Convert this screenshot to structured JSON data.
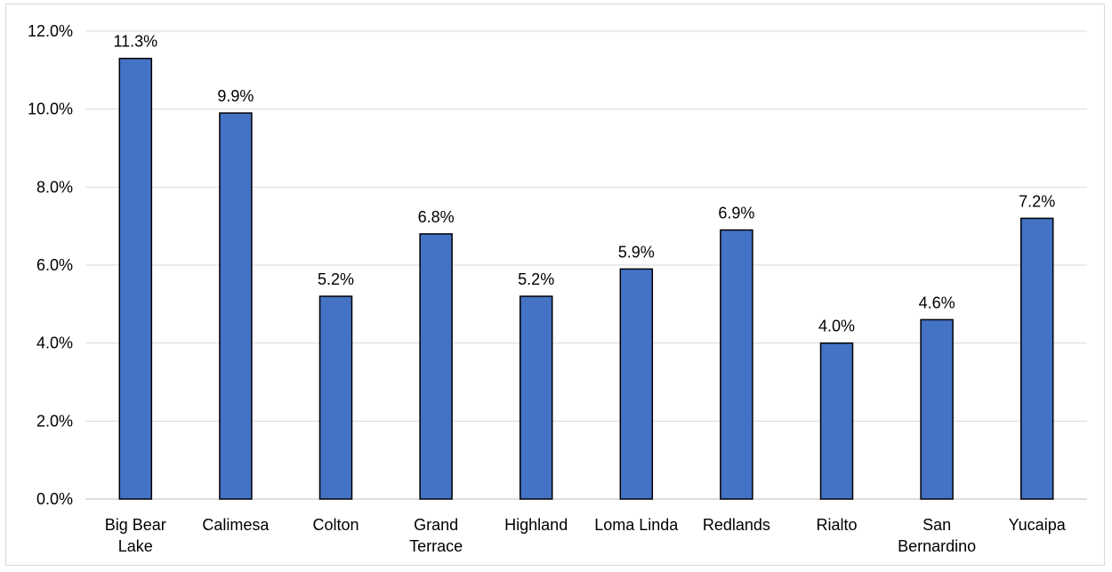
{
  "chart_data": {
    "type": "bar",
    "categories": [
      [
        "Big Bear",
        "Lake"
      ],
      [
        "Calimesa"
      ],
      [
        "Colton"
      ],
      [
        "Grand",
        "Terrace"
      ],
      [
        "Highland"
      ],
      [
        "Loma Linda"
      ],
      [
        "Redlands"
      ],
      [
        "Rialto"
      ],
      [
        "San",
        "Bernardino"
      ],
      [
        "Yucaipa"
      ]
    ],
    "values": [
      11.3,
      9.9,
      5.2,
      6.8,
      5.2,
      5.9,
      6.9,
      4.0,
      4.6,
      7.2
    ],
    "data_labels": [
      "11.3%",
      "9.9%",
      "5.2%",
      "6.8%",
      "5.2%",
      "5.9%",
      "6.9%",
      "4.0%",
      "4.6%",
      "7.2%"
    ],
    "y_ticks": [
      0,
      2,
      4,
      6,
      8,
      10,
      12
    ],
    "y_tick_labels": [
      "0.0%",
      "2.0%",
      "4.0%",
      "6.0%",
      "8.0%",
      "10.0%",
      "12.0%"
    ],
    "ylim": [
      0,
      12
    ],
    "title": "",
    "xlabel": "",
    "ylabel": "",
    "grid": true,
    "legend": "none",
    "colors": {
      "bar_fill": "#4472c4",
      "bar_stroke": "#000000",
      "gridline": "#d9d9d9",
      "axis": "#bfbfbf",
      "text": "#000000"
    }
  }
}
